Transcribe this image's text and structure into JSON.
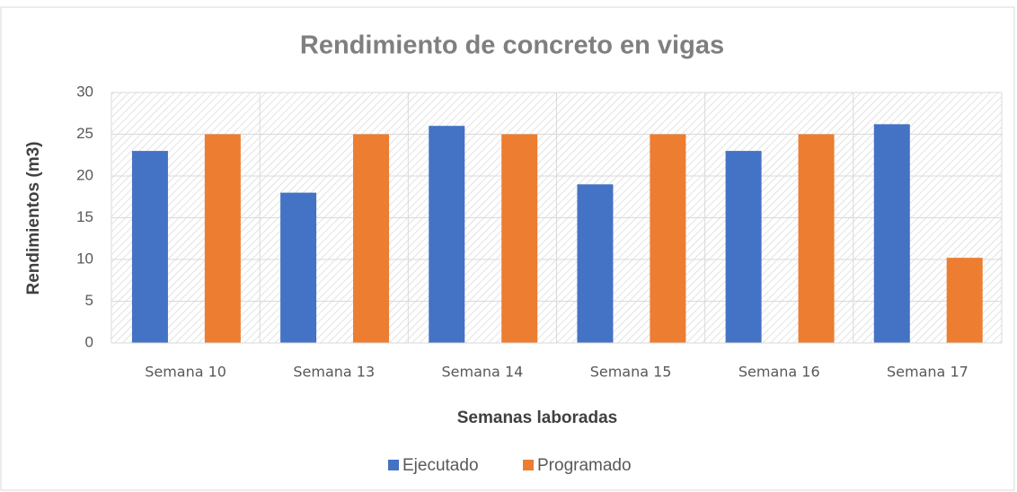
{
  "chart_data": {
    "type": "bar",
    "title": "Rendimiento de concreto en vigas",
    "x_label": "Semanas laboradas",
    "y_label": "Rendimientos (m3)",
    "categories": [
      "Semana 10",
      "Semana 13",
      "Semana 14",
      "Semana 15",
      "Semana 16",
      "Semana 17"
    ],
    "series": [
      {
        "name": "Ejecutado",
        "color": "#4472c4",
        "values": [
          23,
          18,
          26,
          19,
          23,
          26.2
        ]
      },
      {
        "name": "Programado",
        "color": "#ed7d31",
        "values": [
          25,
          25,
          25,
          25,
          25,
          10.2
        ]
      }
    ],
    "ylim": [
      0,
      30
    ],
    "yticks": [
      0,
      5,
      10,
      15,
      20,
      25,
      30
    ],
    "grid": true,
    "legend": "bottom"
  }
}
